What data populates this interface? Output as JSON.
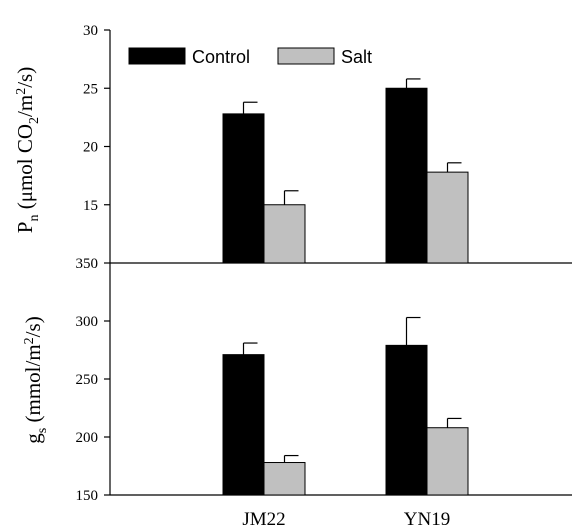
{
  "chart_data": [
    {
      "type": "bar",
      "categories": [
        "JM22",
        "YN19"
      ],
      "series": [
        {
          "name": "Control",
          "values": [
            22.8,
            25.0
          ],
          "errors": [
            1.0,
            0.8
          ],
          "color": "#000000"
        },
        {
          "name": "Salt",
          "values": [
            15.0,
            17.8
          ],
          "errors": [
            1.2,
            0.8
          ],
          "color": "#c0c0c0"
        }
      ],
      "ylabel": {
        "main": "P",
        "sub": "n",
        "rest": " (μmol CO",
        "sub2": "2",
        "rest2": "/m",
        "sup": "2",
        "rest3": "/s)"
      },
      "ylim": [
        10,
        30
      ],
      "yticks": [
        15,
        20,
        25,
        30
      ],
      "legend": "top-left"
    },
    {
      "type": "bar",
      "categories": [
        "JM22",
        "YN19"
      ],
      "series": [
        {
          "name": "Control",
          "values": [
            271,
            279
          ],
          "errors": [
            10,
            24
          ],
          "color": "#000000"
        },
        {
          "name": "Salt",
          "values": [
            178,
            208
          ],
          "errors": [
            6,
            8
          ],
          "color": "#c0c0c0"
        }
      ],
      "ylabel": {
        "main": "g",
        "sub": "s",
        "rest": " (mmol/m",
        "sup": "2",
        "rest2": "/s)"
      },
      "ylim": [
        150,
        350
      ],
      "yticks": [
        150,
        200,
        250,
        300,
        350
      ]
    }
  ]
}
